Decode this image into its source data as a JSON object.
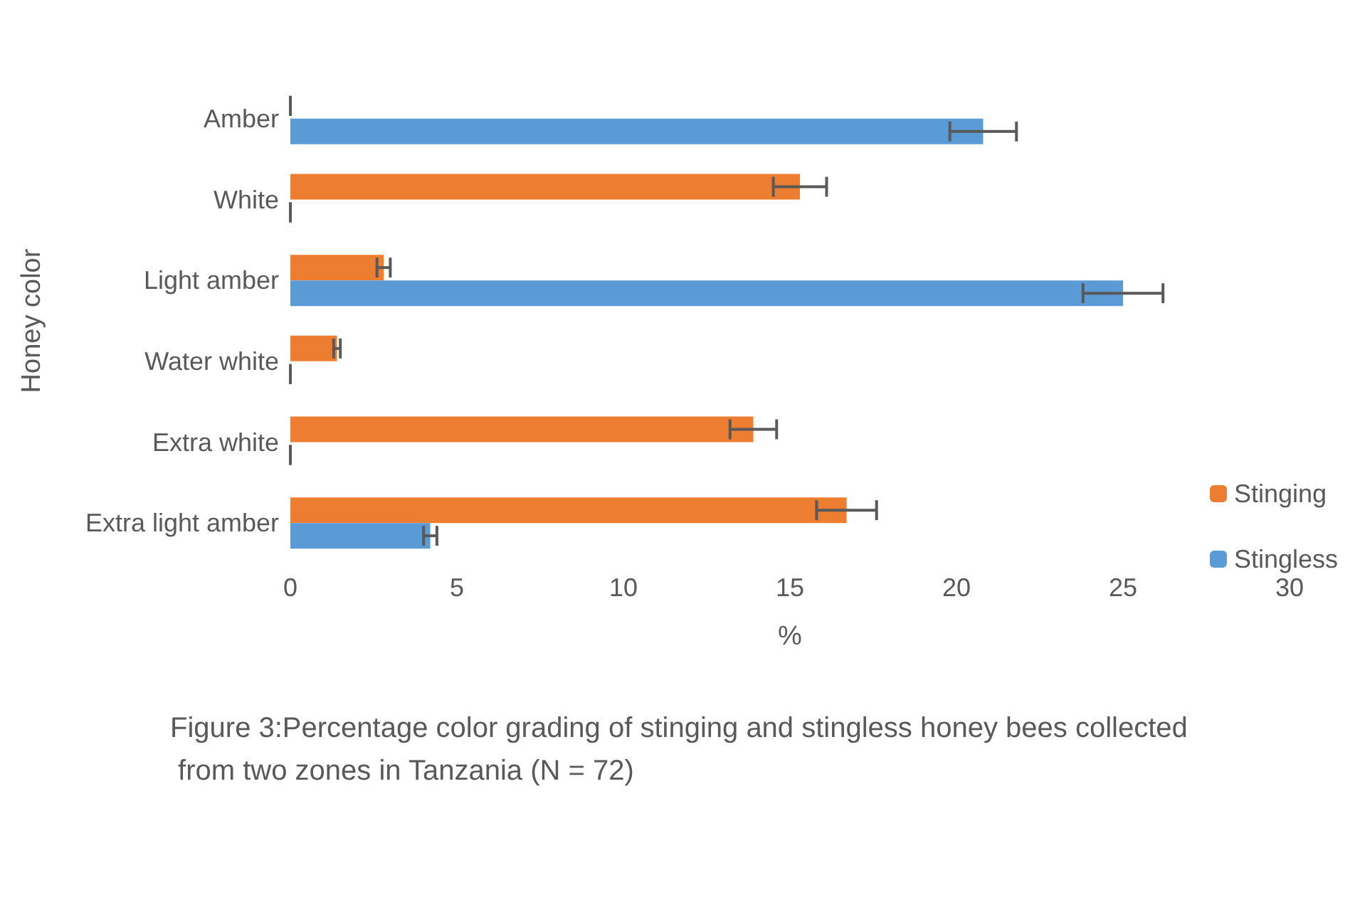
{
  "chart_data": {
    "type": "bar",
    "orientation": "horizontal",
    "title": "Figure 3:Percentage color grading of stinging and stingless honey bees collected from two zones in Tanzania (N = 72)",
    "xlabel": "%",
    "ylabel": "Honey color",
    "categories": [
      "Amber",
      "White",
      "Light amber",
      "Water white",
      "Extra white",
      "Extra light amber"
    ],
    "series": [
      {
        "name": "Stinging",
        "color": "#ed7d31",
        "values": [
          0,
          15.3,
          2.8,
          1.4,
          13.9,
          16.7
        ],
        "errors": [
          0,
          0.8,
          0.2,
          0.1,
          0.7,
          0.9
        ]
      },
      {
        "name": "Stingless",
        "color": "#5b9bd5",
        "values": [
          20.8,
          0,
          25.0,
          0,
          0,
          4.2
        ],
        "errors": [
          1.0,
          0,
          1.2,
          0,
          0,
          0.2
        ]
      }
    ],
    "xlim": [
      0,
      30
    ],
    "xticks": [
      0,
      5,
      10,
      15,
      20,
      25,
      30
    ],
    "grid": false,
    "legend": "right"
  }
}
